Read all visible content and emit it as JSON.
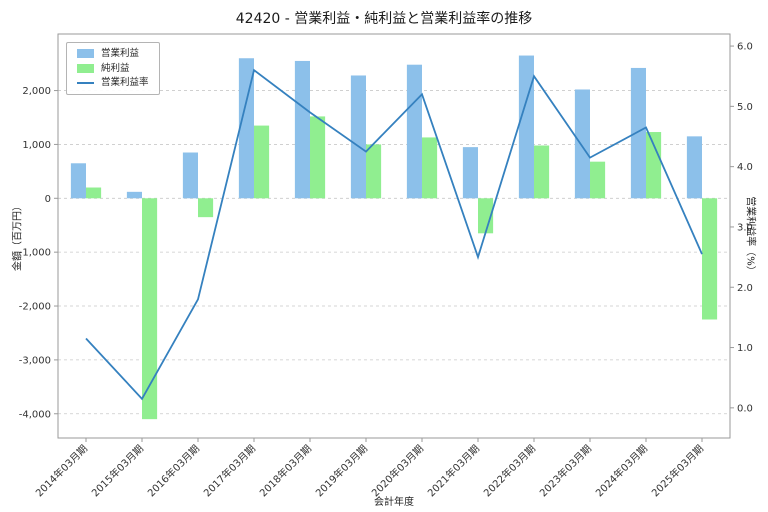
{
  "chart_data": {
    "type": "bar",
    "title": "42420 - 営業利益・純利益と営業利益率の推移",
    "xlabel": "会計年度",
    "grid": true,
    "legend_position": "upper-left",
    "categories": [
      "2014年03月期",
      "2015年03月期",
      "2016年03月期",
      "2017年03月期",
      "2018年03月期",
      "2019年03月期",
      "2020年03月期",
      "2021年03月期",
      "2022年03月期",
      "2023年03月期",
      "2024年03月期",
      "2025年03月期"
    ],
    "series": [
      {
        "name": "営業利益",
        "type": "bar",
        "axis": "left",
        "color": "#8cc0ea",
        "values": [
          650,
          120,
          850,
          2600,
          2550,
          2280,
          2480,
          950,
          2650,
          2020,
          2420,
          1150
        ]
      },
      {
        "name": "純利益",
        "type": "bar",
        "axis": "left",
        "color": "#90ee90",
        "values": [
          200,
          -4100,
          -350,
          1350,
          1520,
          1000,
          1130,
          -650,
          980,
          680,
          1230,
          -2250
        ]
      },
      {
        "name": "営業利益率",
        "type": "line",
        "axis": "right",
        "color": "#3581bf",
        "values": [
          1.15,
          0.15,
          1.8,
          5.6,
          4.9,
          4.25,
          5.2,
          2.5,
          5.5,
          4.15,
          4.65,
          2.55
        ]
      }
    ],
    "left_axis": {
      "label": "金額（百万円）",
      "lim": [
        -4450,
        3050
      ],
      "ticks": [
        {
          "v": 2000,
          "label": "2,000"
        },
        {
          "v": 1000,
          "label": "1,000"
        },
        {
          "v": 0,
          "label": "0"
        },
        {
          "v": -1000,
          "label": "-1,000"
        },
        {
          "v": -2000,
          "label": "-2,000"
        },
        {
          "v": -3000,
          "label": "-3,000"
        },
        {
          "v": -4000,
          "label": "-4,000"
        }
      ]
    },
    "right_axis": {
      "label": "営業利益率（%）",
      "lim": [
        -0.5,
        6.2
      ],
      "ticks": [
        {
          "v": 6.0,
          "label": "6.0"
        },
        {
          "v": 5.0,
          "label": "5.0"
        },
        {
          "v": 4.0,
          "label": "4.0"
        },
        {
          "v": 3.0,
          "label": "3.0"
        },
        {
          "v": 2.0,
          "label": "2.0"
        },
        {
          "v": 1.0,
          "label": "1.0"
        },
        {
          "v": 0.0,
          "label": "0.0"
        }
      ]
    },
    "colors": {
      "background": "#ffffff",
      "grid": "#c9c9c9",
      "spine": "#9a9a9a",
      "text": "#333333"
    }
  }
}
